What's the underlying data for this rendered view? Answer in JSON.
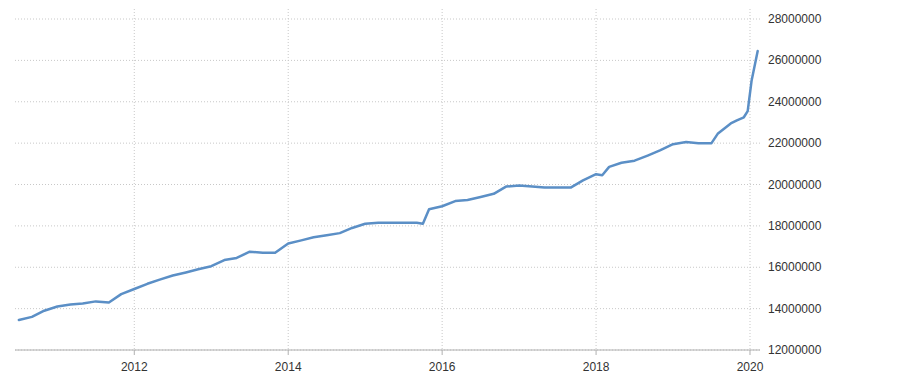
{
  "chart_data": {
    "type": "line",
    "color": "#5b8fc6",
    "grid": true,
    "x": [
      2010.5,
      2010.67,
      2010.83,
      2011.0,
      2011.17,
      2011.33,
      2011.5,
      2011.67,
      2011.83,
      2012.0,
      2012.17,
      2012.33,
      2012.5,
      2012.67,
      2012.83,
      2013.0,
      2013.17,
      2013.33,
      2013.5,
      2013.67,
      2013.83,
      2014.0,
      2014.17,
      2014.33,
      2014.5,
      2014.67,
      2014.83,
      2015.0,
      2015.17,
      2015.33,
      2015.5,
      2015.67,
      2015.75,
      2015.83,
      2016.0,
      2016.17,
      2016.33,
      2016.5,
      2016.67,
      2016.83,
      2017.0,
      2017.17,
      2017.33,
      2017.5,
      2017.67,
      2017.83,
      2018.0,
      2018.08,
      2018.17,
      2018.33,
      2018.5,
      2018.67,
      2018.83,
      2019.0,
      2019.17,
      2019.33,
      2019.5,
      2019.58,
      2019.75,
      2019.83,
      2019.92,
      2019.97,
      2020.02,
      2020.1
    ],
    "values": [
      13450000,
      13600000,
      13900000,
      14100000,
      14200000,
      14250000,
      14350000,
      14300000,
      14700000,
      14950000,
      15200000,
      15400000,
      15600000,
      15750000,
      15900000,
      16050000,
      16350000,
      16450000,
      16750000,
      16700000,
      16700000,
      17150000,
      17300000,
      17450000,
      17550000,
      17650000,
      17900000,
      18100000,
      18150000,
      18150000,
      18150000,
      18150000,
      18100000,
      18800000,
      18950000,
      19200000,
      19250000,
      19400000,
      19550000,
      19900000,
      19950000,
      19900000,
      19850000,
      19850000,
      19850000,
      20200000,
      20500000,
      20450000,
      20850000,
      21050000,
      21150000,
      21400000,
      21650000,
      21950000,
      22050000,
      22000000,
      22000000,
      22450000,
      22950000,
      23100000,
      23250000,
      23550000,
      25000000,
      26450000
    ],
    "xlim": [
      2010.45,
      2020.13
    ],
    "xticks": [
      2012,
      2014,
      2016,
      2018,
      2020
    ],
    "ylim": [
      12000000,
      28000000
    ],
    "yticks": [
      12000000,
      14000000,
      16000000,
      18000000,
      20000000,
      22000000,
      24000000,
      26000000,
      28000000
    ]
  }
}
